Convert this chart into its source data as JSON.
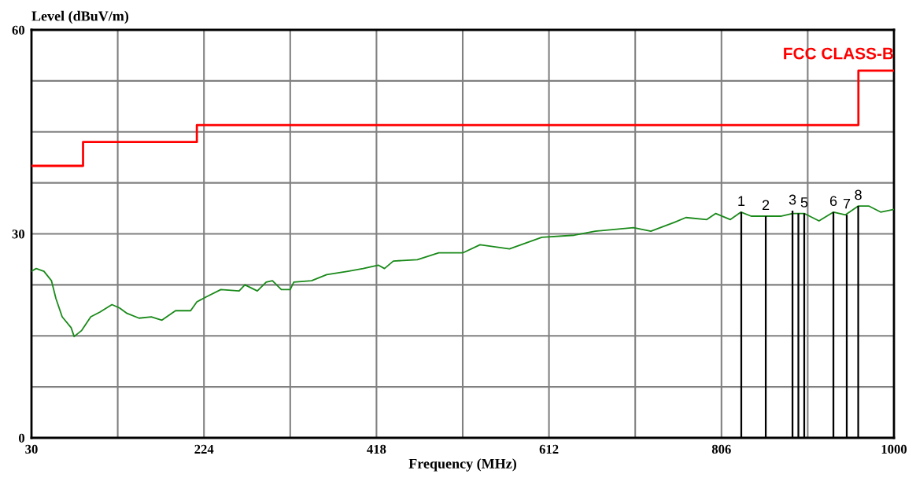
{
  "chart_data": {
    "type": "line",
    "ylabel": "Level (dBuV/m)",
    "xlabel": "Frequency (MHz)",
    "xlim": [
      30,
      1000
    ],
    "ylim": [
      0,
      60
    ],
    "xticks": [
      30,
      {
        "value": 127,
        "label": null
      },
      224,
      {
        "value": 321,
        "label": null
      },
      418,
      {
        "value": 515,
        "label": null
      },
      612,
      {
        "value": 709,
        "label": null
      },
      806,
      {
        "value": 903,
        "label": null
      },
      1000
    ],
    "yticks": [
      0,
      {
        "value": 7.5,
        "label": null
      },
      {
        "value": 15,
        "label": null
      },
      {
        "value": 22.5,
        "label": null
      },
      30,
      {
        "value": 37.5,
        "label": null
      },
      {
        "value": 45,
        "label": null
      },
      {
        "value": 52.5,
        "label": null
      },
      60
    ],
    "grid": true,
    "legend": false,
    "series": [
      {
        "type": "step",
        "name": "FCC CLASS-B",
        "color": "#ff0000",
        "x": [
          30,
          88,
          216,
          960,
          1000
        ],
        "values": [
          40,
          43.5,
          46,
          54,
          54
        ]
      },
      {
        "color": "#1a8a1a",
        "x": [
          30,
          35.3,
          44,
          52.5,
          57.5,
          64.5,
          74.6,
          78,
          86.5,
          96.7,
          107,
          120.5,
          129,
          137.5,
          151,
          164.8,
          176.7,
          192,
          209,
          216,
          226,
          243,
          263.5,
          270,
          284,
          294,
          301,
          311,
          321,
          325,
          345,
          362,
          386,
          403,
          420,
          427,
          437,
          464,
          488,
          515,
          534.5,
          567.6,
          604,
          640.5,
          664,
          707,
          726.6,
          753,
          766,
          789.5,
          799.6,
          816,
          828,
          839.4,
          855.8,
          872.6,
          886,
          899,
          915.7,
          932,
          945.5,
          960,
          971.6,
          985,
          1000
        ],
        "values": [
          24.5,
          24.9,
          24.5,
          23.1,
          20.5,
          17.8,
          16.2,
          14.9,
          15.8,
          17.8,
          18.5,
          19.6,
          19.1,
          18.3,
          17.6,
          17.8,
          17.3,
          18.7,
          18.7,
          20.0,
          20.7,
          21.8,
          21.6,
          22.5,
          21.6,
          22.9,
          23.1,
          21.8,
          21.8,
          22.9,
          23.1,
          24.0,
          24.5,
          24.9,
          25.4,
          24.9,
          26.0,
          26.2,
          27.2,
          27.2,
          28.4,
          27.8,
          29.5,
          29.8,
          30.4,
          30.9,
          30.4,
          31.7,
          32.4,
          32.1,
          33.0,
          32.1,
          33.2,
          32.6,
          32.6,
          32.6,
          33.0,
          33.0,
          31.9,
          33.2,
          32.8,
          34.1,
          34.1,
          33.2,
          33.6
        ]
      },
      {
        "type": "bar",
        "color": "#000000",
        "x": [
          828.3,
          855.8,
          885.9,
          892.5,
          899.1,
          931.9,
          946.9,
          959.8
        ],
        "values": [
          33.2,
          32.6,
          33.4,
          33.0,
          33.0,
          33.2,
          32.8,
          34.1
        ]
      }
    ],
    "annotations": [
      {
        "text": "1",
        "x": 828.3,
        "y": 33.2
      },
      {
        "text": "2",
        "x": 855.8,
        "y": 32.6
      },
      {
        "text": "3",
        "x": 885.9,
        "y": 33.4
      },
      {
        "text": "5",
        "x": 899.1,
        "y": 33.0
      },
      {
        "text": "6",
        "x": 931.9,
        "y": 33.2
      },
      {
        "text": "7",
        "x": 946.9,
        "y": 32.8
      },
      {
        "text": "8",
        "x": 959.8,
        "y": 34.1
      }
    ]
  }
}
